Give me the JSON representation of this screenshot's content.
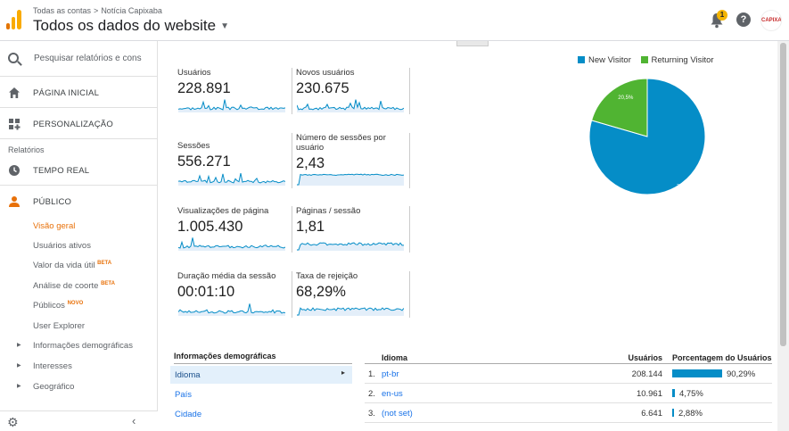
{
  "header": {
    "breadcrumb_account": "Todas as contas",
    "breadcrumb_sep": ">",
    "breadcrumb_property": "Notícia Capixaba",
    "view_title": "Todos os dados do website",
    "notification_count": "1",
    "help_symbol": "?",
    "avatar_text": "CAPIXABA",
    "logo_colors": [
      "#f9ab00",
      "#e37400"
    ]
  },
  "sidebar": {
    "search_placeholder": "Pesquisar relatórios e cons",
    "home": "PÁGINA INICIAL",
    "customization": "PERSONALIZAÇÃO",
    "reports_label": "Relatórios",
    "realtime": "TEMPO REAL",
    "audience": "PÚBLICO",
    "audience_items": [
      {
        "label": "Visão geral",
        "badge": ""
      },
      {
        "label": "Usuários ativos",
        "badge": ""
      },
      {
        "label": "Valor da vida útil",
        "badge": "BETA"
      },
      {
        "label": "Análise de coorte",
        "badge": "BETA"
      },
      {
        "label": "Públicos",
        "badge": "NOVO"
      },
      {
        "label": "User Explorer",
        "badge": ""
      },
      {
        "label": "Informações demográficas",
        "badge": ""
      },
      {
        "label": "Interesses",
        "badge": ""
      },
      {
        "label": "Geográfico",
        "badge": ""
      }
    ],
    "collapse_symbol": "‹",
    "accent": "#e8710a"
  },
  "metrics": [
    {
      "label": "Usuários",
      "value": "228.891"
    },
    {
      "label": "Novos usuários",
      "value": "230.675"
    },
    {
      "label": "Sessões",
      "value": "556.271"
    },
    {
      "label": "Número de sessões por usuário",
      "value": "2,43"
    },
    {
      "label": "Visualizações de página",
      "value": "1.005.430"
    },
    {
      "label": "Páginas / sessão",
      "value": "1,81"
    },
    {
      "label": "Duração média da sessão",
      "value": "00:01:10"
    },
    {
      "label": "Taxa de rejeição",
      "value": "68,29%"
    }
  ],
  "chart_data": {
    "type": "pie",
    "legend_placement": "top",
    "labels": [
      "New Visitor",
      "Returning Visitor"
    ],
    "values": [
      79.5,
      20.5
    ],
    "value_labels": [
      "79,5%",
      "20,5%"
    ],
    "colors": [
      "#058dc7",
      "#50b432"
    ]
  },
  "demographics": {
    "header": "Informações demográficas",
    "items": [
      "Idioma",
      "País",
      "Cidade"
    ],
    "selected_arrow": "▸"
  },
  "language_table": {
    "headers": [
      "Idioma",
      "Usuários",
      "Porcentagem do Usuários"
    ],
    "rows": [
      {
        "idx": "1.",
        "lang": "pt-br",
        "users": "208.144",
        "pct": "90,29%",
        "pct_value": 90.29
      },
      {
        "idx": "2.",
        "lang": "en-us",
        "users": "10.961",
        "pct": "4,75%",
        "pct_value": 4.75
      },
      {
        "idx": "3.",
        "lang": "(not set)",
        "users": "6.641",
        "pct": "2,88%",
        "pct_value": 2.88
      }
    ],
    "bar_color": "#058dc7"
  }
}
